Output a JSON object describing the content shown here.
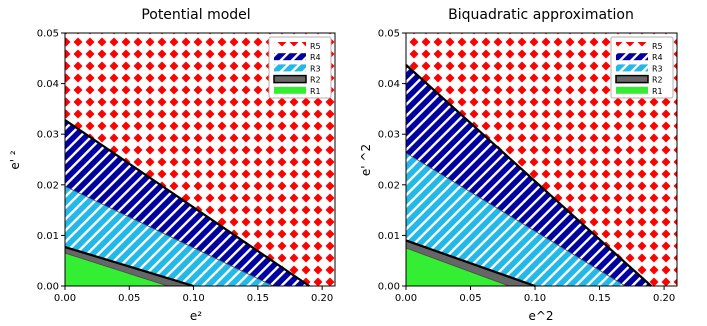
{
  "chart_data": [
    {
      "type": "area",
      "title": "Potential model",
      "xlabel": "e²",
      "ylabel": "e' ²",
      "xlim": [
        0.0,
        0.21
      ],
      "ylim": [
        0.0,
        0.05
      ],
      "xticks": [
        "0.00",
        "0.05",
        "0.10",
        "0.15",
        "0.20"
      ],
      "yticks": [
        "0.00",
        "0.01",
        "0.02",
        "0.03",
        "0.04",
        "0.05"
      ],
      "legend_position": "top-right",
      "boundaries": [
        {
          "name": "R1",
          "x": [
            0.0,
            0.08
          ],
          "y": [
            0.0065,
            0.0
          ]
        },
        {
          "name": "R2",
          "x": [
            0.0,
            0.1
          ],
          "y": [
            0.0077,
            0.0
          ]
        },
        {
          "name": "R3",
          "x": [
            0.0,
            0.162
          ],
          "y": [
            0.0197,
            0.0
          ]
        },
        {
          "name": "R4",
          "x": [
            0.0,
            0.19
          ],
          "y": [
            0.0328,
            0.0
          ]
        }
      ],
      "series": [
        {
          "name": "R5",
          "color": "#ff0000",
          "pattern": "diamonds"
        },
        {
          "name": "R4",
          "color": "#0000a0",
          "pattern": "diagonal-hatch"
        },
        {
          "name": "R3",
          "color": "#22b8e8",
          "pattern": "diagonal-hatch"
        },
        {
          "name": "R2",
          "color": "#666666",
          "pattern": "solid"
        },
        {
          "name": "R1",
          "color": "#33ee33",
          "pattern": "solid"
        }
      ]
    },
    {
      "type": "area",
      "title": "Biquadratic approximation",
      "xlabel": "e^2",
      "ylabel": "e' ^2",
      "xlim": [
        0.0,
        0.21
      ],
      "ylim": [
        0.0,
        0.05
      ],
      "xticks": [
        "0.00",
        "0.05",
        "0.10",
        "0.15",
        "0.20"
      ],
      "yticks": [
        "0.00",
        "0.01",
        "0.02",
        "0.03",
        "0.04",
        "0.05"
      ],
      "legend_position": "top-right",
      "boundaries": [
        {
          "name": "R1",
          "x": [
            0.0,
            0.08
          ],
          "y": [
            0.0075,
            0.0
          ]
        },
        {
          "name": "R2",
          "x": [
            0.0,
            0.1
          ],
          "y": [
            0.009,
            0.0
          ]
        },
        {
          "name": "R3",
          "x": [
            0.0,
            0.17
          ],
          "y": [
            0.0263,
            0.0
          ]
        },
        {
          "name": "R4",
          "x": [
            0.0,
            0.19
          ],
          "y": [
            0.0437,
            0.0
          ]
        }
      ],
      "series": [
        {
          "name": "R5",
          "color": "#ff0000",
          "pattern": "diamonds"
        },
        {
          "name": "R4",
          "color": "#0000a0",
          "pattern": "diagonal-hatch"
        },
        {
          "name": "R3",
          "color": "#22b8e8",
          "pattern": "diagonal-hatch"
        },
        {
          "name": "R2",
          "color": "#666666",
          "pattern": "solid"
        },
        {
          "name": "R1",
          "color": "#33ee33",
          "pattern": "solid"
        }
      ]
    }
  ]
}
